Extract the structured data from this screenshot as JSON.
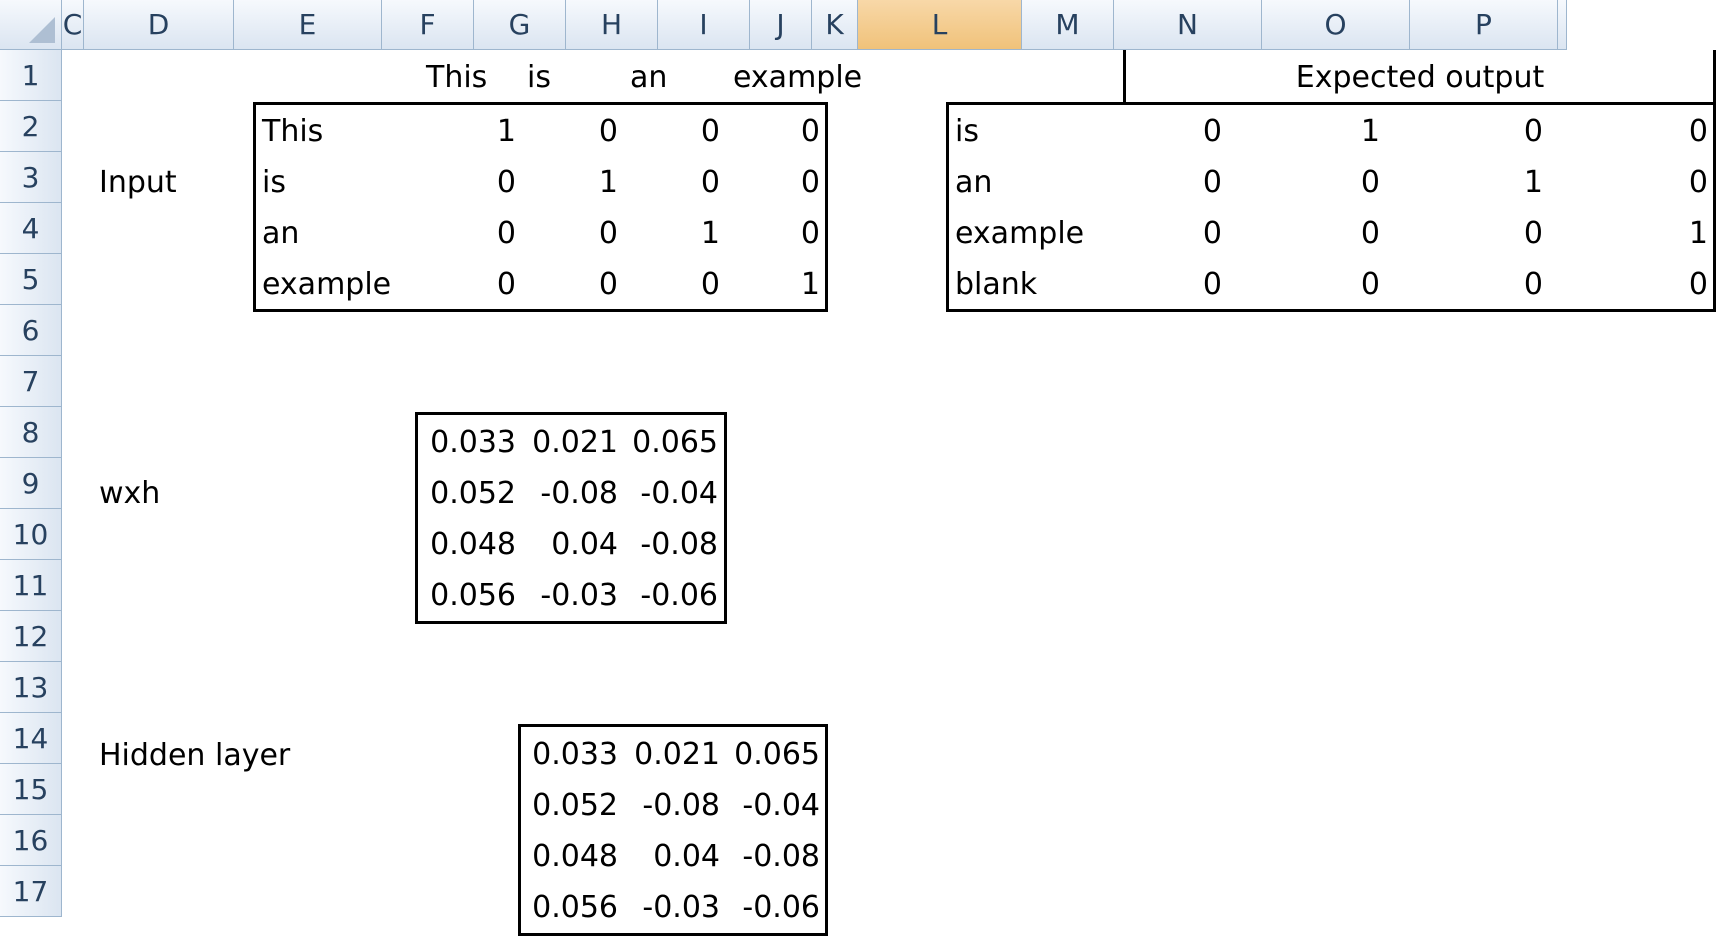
{
  "columns": [
    "C",
    "D",
    "E",
    "F",
    "G",
    "H",
    "I",
    "J",
    "K",
    "L",
    "M",
    "N",
    "O",
    "P"
  ],
  "selected_column": "L",
  "rows": [
    "1",
    "2",
    "3",
    "4",
    "5",
    "6",
    "7",
    "8",
    "9",
    "10",
    "11",
    "12",
    "13",
    "14",
    "15",
    "16",
    "17"
  ],
  "header_row": {
    "f": "This",
    "g": "is",
    "h": "an",
    "i": "example",
    "expected": "Expected output"
  },
  "input": {
    "label": "Input",
    "rows": [
      {
        "word": "This",
        "v": [
          "1",
          "0",
          "0",
          "0"
        ]
      },
      {
        "word": "is",
        "v": [
          "0",
          "1",
          "0",
          "0"
        ]
      },
      {
        "word": "an",
        "v": [
          "0",
          "0",
          "1",
          "0"
        ]
      },
      {
        "word": "example",
        "v": [
          "0",
          "0",
          "0",
          "1"
        ]
      }
    ]
  },
  "expected": {
    "rows": [
      {
        "word": "is",
        "v": [
          "0",
          "1",
          "0",
          "0"
        ]
      },
      {
        "word": "an",
        "v": [
          "0",
          "0",
          "1",
          "0"
        ]
      },
      {
        "word": "example",
        "v": [
          "0",
          "0",
          "0",
          "1"
        ]
      },
      {
        "word": "blank",
        "v": [
          "0",
          "0",
          "0",
          "0"
        ]
      }
    ]
  },
  "wxh": {
    "label": "wxh",
    "rows": [
      [
        "0.033",
        "0.021",
        "0.065"
      ],
      [
        "0.052",
        "-0.08",
        "-0.04"
      ],
      [
        "0.048",
        "0.04",
        "-0.08"
      ],
      [
        "0.056",
        "-0.03",
        "-0.06"
      ]
    ]
  },
  "hidden": {
    "label": "Hidden layer",
    "rows": [
      [
        "0.033",
        "0.021",
        "0.065"
      ],
      [
        "0.052",
        "-0.08",
        "-0.04"
      ],
      [
        "0.048",
        "0.04",
        "-0.08"
      ],
      [
        "0.056",
        "-0.03",
        "-0.06"
      ]
    ]
  }
}
